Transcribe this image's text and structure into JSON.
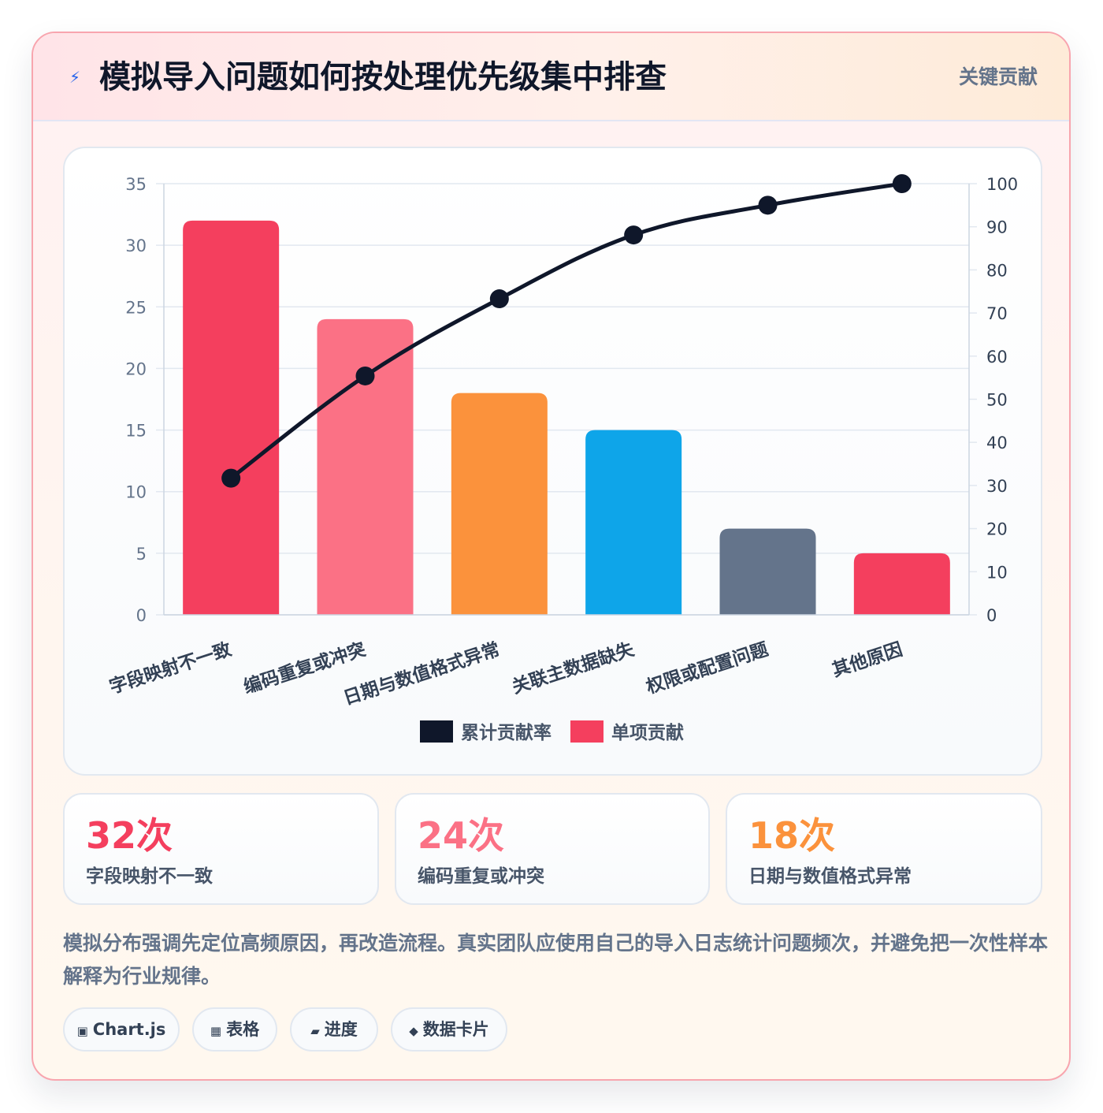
{
  "header": {
    "icon": "lightning-icon",
    "icon_glyph": "⚡",
    "title": "模拟导入问题如何按处理优先级集中排查",
    "badge": "关键贡献"
  },
  "chart_data": {
    "type": "bar",
    "categories": [
      "字段映射不一致",
      "编码重复或冲突",
      "日期与数值格式异常",
      "关联主数据缺失",
      "权限或配置问题",
      "其他原因"
    ],
    "series": [
      {
        "name": "单项贡献",
        "type": "bar",
        "values": [
          32,
          24,
          18,
          15,
          7,
          5
        ],
        "colors": [
          "#f43f5e",
          "#fb7185",
          "#fb923c",
          "#0ea5e9",
          "#64748b",
          "#f43f5e"
        ],
        "axis": "left"
      },
      {
        "name": "累计贡献率",
        "type": "line",
        "values": [
          31.7,
          55.4,
          73.3,
          88.1,
          95.0,
          100.0
        ],
        "color": "#0f172a",
        "axis": "right"
      }
    ],
    "y_left": {
      "min": 0,
      "max": 35,
      "step": 5,
      "ticks": [
        "0",
        "5",
        "10",
        "15",
        "20",
        "25",
        "30",
        "35"
      ]
    },
    "y_right": {
      "min": 0,
      "max": 100,
      "step": 10,
      "ticks": [
        "0",
        "10",
        "20",
        "30",
        "40",
        "50",
        "60",
        "70",
        "80",
        "90",
        "100"
      ]
    },
    "grid": true,
    "legend": {
      "position": "bottom",
      "items": [
        {
          "label": "累计贡献率",
          "color": "#0f172a"
        },
        {
          "label": "单项贡献",
          "color": "#f43f5e"
        }
      ]
    }
  },
  "stats": [
    {
      "value": "32次",
      "label": "字段映射不一致",
      "color": "#f43f5e"
    },
    {
      "value": "24次",
      "label": "编码重复或冲突",
      "color": "#fb7185"
    },
    {
      "value": "18次",
      "label": "日期与数值格式异常",
      "color": "#fb923c"
    }
  ],
  "note": "模拟分布强调先定位高频原因，再改造流程。真实团队应使用自己的导入日志统计问题频次，并避免把一次性样本解释为行业规律。",
  "tags": [
    {
      "icon": "chart-icon",
      "glyph": "▣",
      "label": "Chart.js"
    },
    {
      "icon": "table-icon",
      "glyph": "▦",
      "label": "表格"
    },
    {
      "icon": "progress-icon",
      "glyph": "▰",
      "label": "进度"
    },
    {
      "icon": "card-icon",
      "glyph": "◆",
      "label": "数据卡片"
    }
  ]
}
